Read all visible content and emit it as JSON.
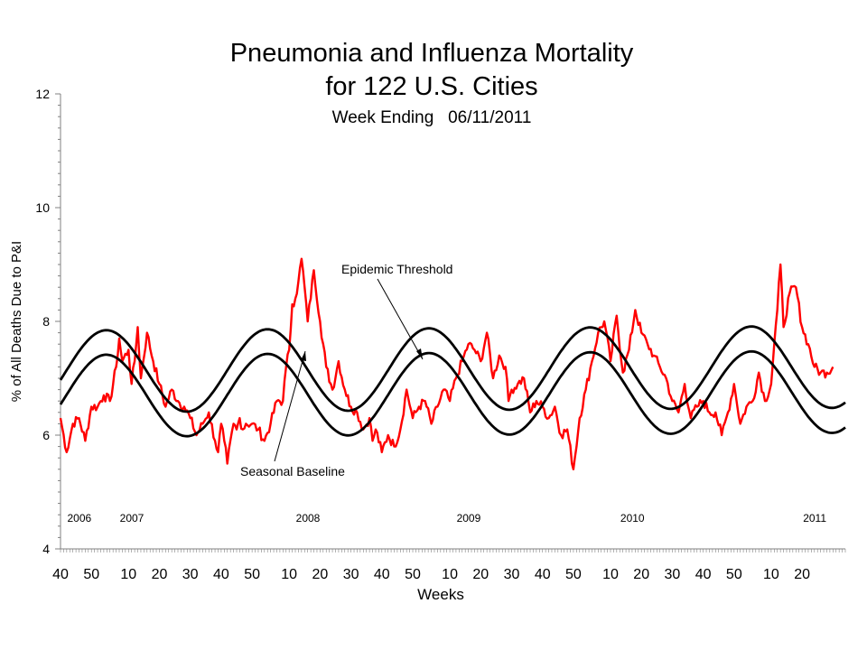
{
  "chart_data": {
    "type": "line",
    "title": "Pneumonia and Influenza Mortality",
    "title_line2": "for 122 U.S. Cities",
    "subtitle": "Week Ending   06/11/2011",
    "xlabel": "Weeks",
    "ylabel": "% of All Deaths Due to P&I",
    "ylim": [
      4,
      12
    ],
    "yticks": [
      4,
      6,
      8,
      10,
      12
    ],
    "grid": false,
    "x_tick_labels": [
      "40",
      "50",
      "10",
      "20",
      "30",
      "40",
      "50",
      "10",
      "20",
      "30",
      "40",
      "50",
      "10",
      "20",
      "30",
      "40",
      "50",
      "10",
      "20",
      "30",
      "40",
      "50",
      "10",
      "20"
    ],
    "year_labels": [
      {
        "label": "2006",
        "week_index": 2
      },
      {
        "label": "2007",
        "week_index": 19
      },
      {
        "label": "2008",
        "week_index": 76
      },
      {
        "label": "2009",
        "week_index": 128
      },
      {
        "label": "2010",
        "week_index": 181
      },
      {
        "label": "2011",
        "week_index": 240
      }
    ],
    "annotations": [
      {
        "text": "Epidemic Threshold",
        "target": "Epidemic Threshold"
      },
      {
        "text": "Seasonal Baseline",
        "target": "Seasonal Baseline"
      }
    ],
    "observed_keypoints": {
      "x": [
        0,
        2,
        4,
        6,
        8,
        10,
        12,
        14,
        16,
        18,
        19,
        20,
        22,
        23,
        24,
        25,
        26,
        28,
        30,
        32,
        34,
        36,
        38,
        40,
        42,
        44,
        46,
        48,
        50,
        51,
        52,
        53,
        54,
        56,
        57,
        58,
        59,
        60,
        62,
        64,
        66,
        68,
        70,
        72,
        73,
        74,
        75,
        76,
        77,
        78,
        79,
        80,
        82,
        84,
        86,
        88,
        90,
        92,
        94,
        96,
        98,
        100,
        101,
        102,
        104,
        106,
        108,
        110,
        112,
        114,
        116,
        118,
        120,
        122,
        124,
        126,
        128,
        130,
        132,
        134,
        136,
        138,
        140,
        142,
        144,
        145,
        146,
        148,
        150,
        152,
        154,
        156,
        158,
        160,
        162,
        164,
        166,
        168,
        170,
        172,
        174,
        176,
        178,
        180,
        182,
        184,
        186,
        188,
        190,
        192,
        194,
        196,
        198,
        200,
        202,
        204,
        206,
        208,
        210,
        212,
        214,
        216,
        218,
        220,
        222,
        224,
        226,
        228,
        230,
        231,
        232,
        233,
        234,
        236,
        238,
        240,
        242,
        244,
        246,
        248,
        250
      ],
      "y": [
        6.3,
        5.7,
        6.2,
        6.3,
        5.9,
        6.5,
        6.5,
        6.7,
        6.6,
        7.2,
        7.7,
        7.3,
        7.5,
        6.9,
        7.3,
        7.9,
        7.0,
        7.8,
        7.3,
        6.9,
        6.5,
        6.8,
        6.6,
        6.5,
        6.3,
        6.0,
        6.2,
        6.4,
        5.9,
        5.7,
        6.2,
        5.9,
        5.5,
        6.2,
        6.1,
        6.3,
        6.1,
        6.2,
        6.2,
        6.1,
        5.9,
        6.2,
        6.6,
        6.6,
        7.2,
        7.5,
        8.3,
        8.4,
        8.7,
        9.1,
        8.6,
        8.0,
        8.9,
        8.0,
        7.2,
        6.8,
        7.3,
        6.8,
        6.5,
        6.4,
        6.1,
        6.3,
        5.9,
        6.1,
        5.7,
        6.0,
        5.8,
        6.1,
        6.8,
        6.3,
        6.5,
        6.6,
        6.2,
        6.5,
        6.8,
        6.6,
        7.0,
        7.3,
        7.6,
        7.5,
        7.3,
        7.8,
        7.0,
        7.4,
        7.2,
        6.6,
        6.8,
        6.9,
        7.0,
        6.4,
        6.6,
        6.5,
        6.3,
        6.5,
        6.0,
        6.1,
        5.4,
        6.3,
        6.8,
        7.3,
        7.8,
        8.0,
        7.3,
        8.1,
        7.1,
        7.5,
        8.2,
        7.8,
        7.6,
        7.4,
        7.2,
        7.0,
        6.6,
        6.4,
        6.9,
        6.3,
        6.5,
        6.6,
        6.4,
        6.4,
        6.0,
        6.4,
        6.9,
        6.2,
        6.5,
        6.6,
        7.1,
        6.6,
        6.9,
        7.6,
        8.2,
        9.0,
        7.9,
        8.5,
        8.6,
        7.9,
        7.6,
        7.2,
        7.1,
        7.1,
        7.2
      ]
    },
    "series": [
      {
        "name": "Epidemic Threshold",
        "mean": 7.12,
        "amplitude": 0.72,
        "trend": 0.08,
        "peak_week_index": 67,
        "period_weeks": 52.2,
        "color": "#000000"
      },
      {
        "name": "Seasonal Baseline",
        "mean": 6.69,
        "amplitude": 0.72,
        "trend": 0.07,
        "peak_week_index": 67,
        "period_weeks": 52.2,
        "color": "#000000"
      }
    ],
    "colors": {
      "observed": "#ff0000",
      "baseline": "#000000",
      "axis": "#808080"
    }
  }
}
